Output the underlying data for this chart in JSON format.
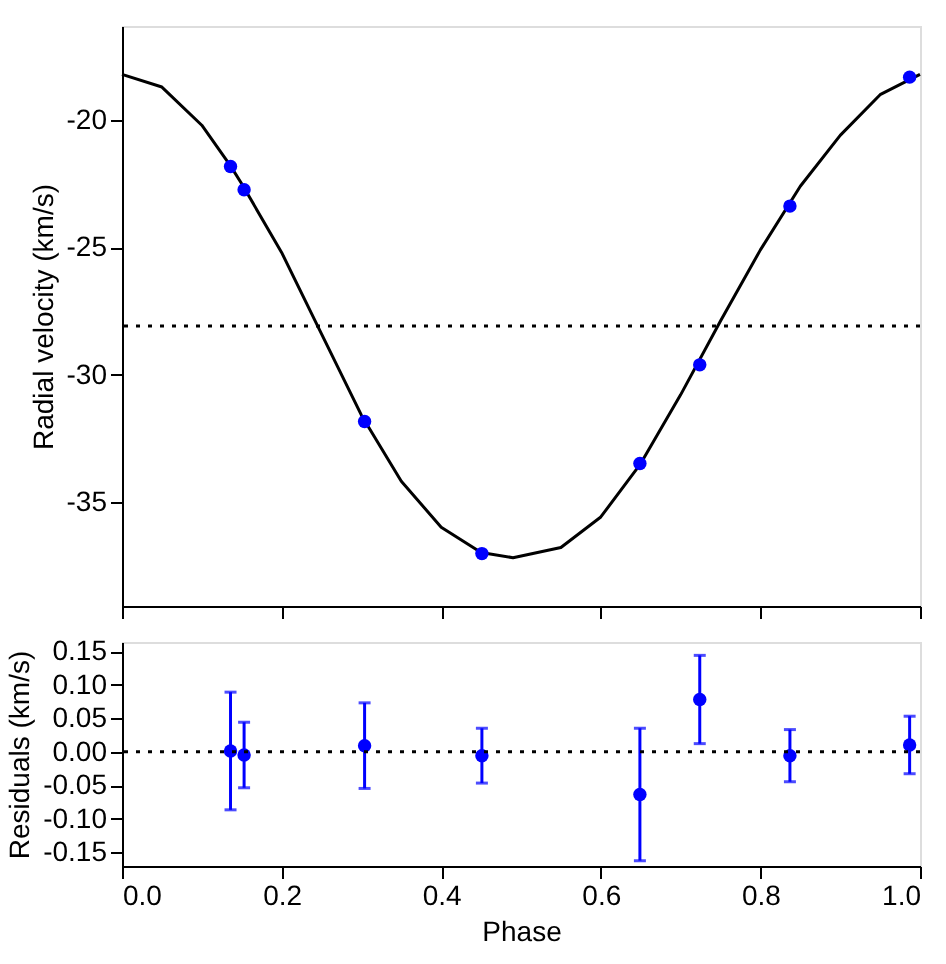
{
  "chart_data": [
    {
      "type": "scatter",
      "ylabel": "Radial velocity (km/s)",
      "xlim": [
        0,
        1
      ],
      "ylim": [
        -39.1,
        -16.3
      ],
      "xticks": [
        0,
        0.2,
        0.4,
        0.6,
        0.8,
        1
      ],
      "yticks": [
        -35,
        -30,
        -25,
        -20
      ],
      "tick_labels": "y",
      "grid": false,
      "ref_lines": [
        {
          "axis": "y",
          "value": -28.09,
          "line_style": "dotted",
          "color": "#000000"
        }
      ],
      "series": [
        {
          "type": "line",
          "color": "#000000",
          "line_style": "solid",
          "x": [
            0,
            0.05,
            0.1,
            0.136,
            0.15,
            0.2,
            0.25,
            0.3,
            0.35,
            0.4,
            0.45,
            0.49,
            0.55,
            0.6,
            0.65,
            0.7,
            0.75,
            0.8,
            0.85,
            0.9,
            0.95,
            1.0
          ],
          "values": [
            -18.2,
            -18.7,
            -20.2,
            -21.8,
            -22.5,
            -25.2,
            -28.4,
            -31.6,
            -34.2,
            -36.0,
            -37.0,
            -37.2,
            -36.8,
            -35.6,
            -33.5,
            -30.8,
            -27.9,
            -25.1,
            -22.6,
            -20.6,
            -19.0,
            -18.2
          ]
        },
        {
          "color": "#0000ff",
          "marker": "circle",
          "x": [
            0.136,
            0.153,
            0.304,
            0.451,
            0.649,
            0.724,
            0.837,
            0.987
          ],
          "values": [
            -21.82,
            -22.74,
            -31.85,
            -37.04,
            -33.5,
            -29.62,
            -23.38,
            -18.31
          ]
        }
      ]
    },
    {
      "type": "scatter",
      "xlabel": "Phase",
      "ylabel": "Residuals (km/s)",
      "xlim": [
        0,
        1
      ],
      "ylim": [
        -0.171,
        0.164
      ],
      "xticks": [
        {
          "value": 0,
          "label": "0.0"
        },
        {
          "value": 0.2,
          "label": "0.2"
        },
        {
          "value": 0.4,
          "label": "0.4"
        },
        {
          "value": 0.6,
          "label": "0.6"
        },
        {
          "value": 0.8,
          "label": "0.8"
        },
        {
          "value": 1,
          "label": "1.0"
        }
      ],
      "yticks": [
        {
          "value": -0.15,
          "label": "-0.15"
        },
        {
          "value": -0.1,
          "label": "-0.10"
        },
        {
          "value": -0.05,
          "label": "-0.05"
        },
        {
          "value": 0,
          "label": "0.00"
        },
        {
          "value": 0.05,
          "label": "0.05"
        },
        {
          "value": 0.1,
          "label": "0.10"
        },
        {
          "value": 0.15,
          "label": "0.15"
        }
      ],
      "grid": false,
      "ref_lines": [
        {
          "axis": "y",
          "value": 0,
          "line_style": "dotted",
          "color": "#000000"
        }
      ],
      "series": [
        {
          "color": "#0000ff",
          "marker": "circle",
          "x": [
            0.136,
            0.153,
            0.304,
            0.451,
            0.649,
            0.724,
            0.837,
            0.987
          ],
          "values": [
            0.001,
            -0.005,
            0.009,
            -0.006,
            -0.064,
            0.078,
            -0.006,
            0.01
          ],
          "errors": [
            0.088,
            0.049,
            0.064,
            0.041,
            0.099,
            0.066,
            0.039,
            0.043
          ]
        }
      ]
    }
  ]
}
